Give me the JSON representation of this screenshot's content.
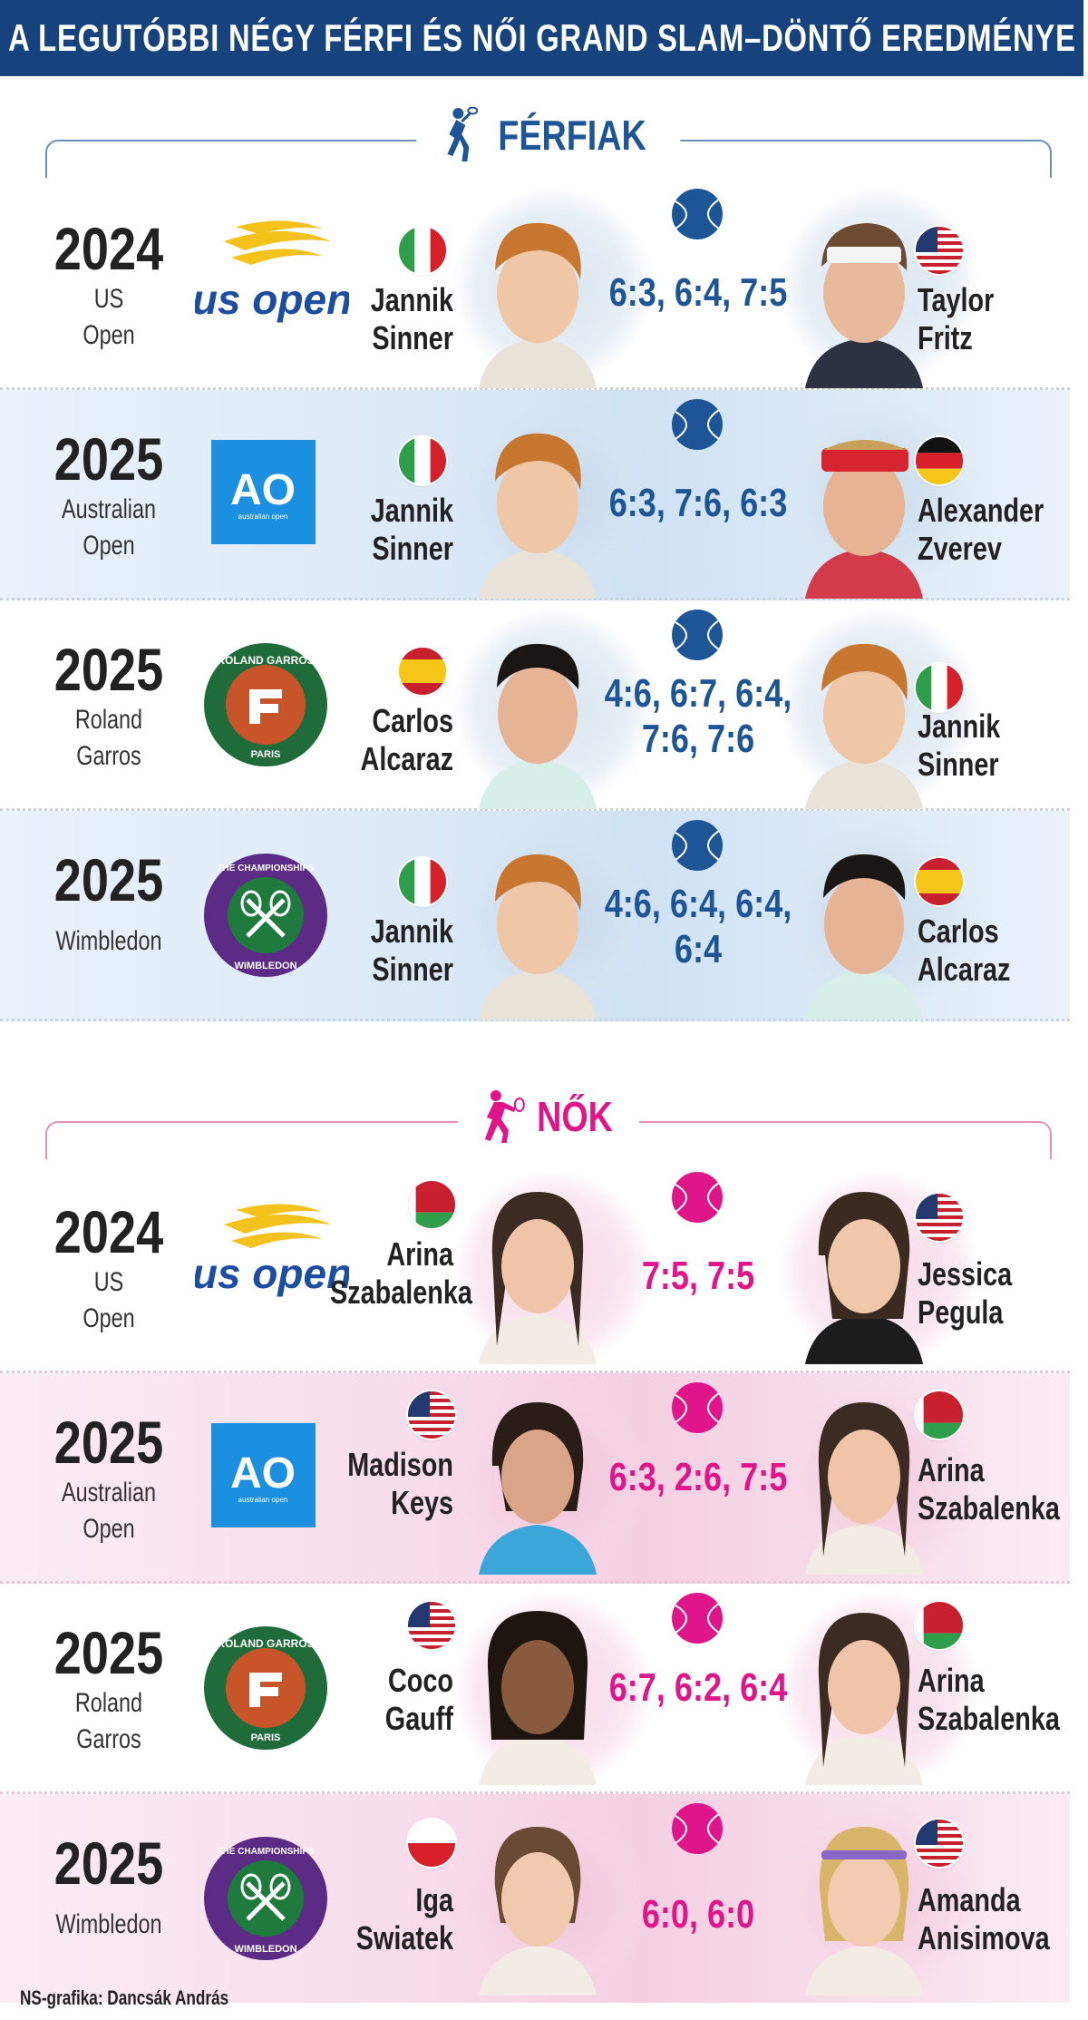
{
  "title": "A LEGUTÓBBI NÉGY FÉRFI ÉS NŐI GRAND SLAM–DÖNTŐ EREDMÉNYE",
  "colors": {
    "navy": "#16437e",
    "blue_accent": "#1d5597",
    "pink": "#e0158a"
  },
  "men": {
    "heading": "FÉRFIAK",
    "matches": [
      {
        "year": "2024",
        "tournament": [
          "US",
          "Open"
        ],
        "logo": "us-open",
        "left": {
          "first": "Jannik",
          "last": "Sinner",
          "flag": "italy"
        },
        "right": {
          "first": "Taylor",
          "last": "Fritz",
          "flag": "usa"
        },
        "score": [
          "6:3, 6:4, 7:5"
        ]
      },
      {
        "year": "2025",
        "tournament": [
          "Australian",
          "Open"
        ],
        "logo": "australian-open",
        "left": {
          "first": "Jannik",
          "last": "Sinner",
          "flag": "italy"
        },
        "right": {
          "first": "Alexander",
          "last": "Zverev",
          "flag": "germany"
        },
        "score": [
          "6:3, 7:6, 6:3"
        ]
      },
      {
        "year": "2025",
        "tournament": [
          "Roland",
          "Garros"
        ],
        "logo": "roland-garros",
        "left": {
          "first": "Carlos",
          "last": "Alcaraz",
          "flag": "spain"
        },
        "right": {
          "first": "Jannik",
          "last": "Sinner",
          "flag": "italy"
        },
        "score": [
          "4:6, 6:7, 6:4,",
          "7:6, 7:6"
        ]
      },
      {
        "year": "2025",
        "tournament": [
          "Wimbledon"
        ],
        "logo": "wimbledon",
        "left": {
          "first": "Jannik",
          "last": "Sinner",
          "flag": "italy"
        },
        "right": {
          "first": "Carlos",
          "last": "Alcaraz",
          "flag": "spain"
        },
        "score": [
          "4:6, 6:4, 6:4,",
          "6:4"
        ]
      }
    ]
  },
  "women": {
    "heading": "NŐK",
    "matches": [
      {
        "year": "2024",
        "tournament": [
          "US",
          "Open"
        ],
        "logo": "us-open",
        "left": {
          "first": "Arina",
          "last": "Szabalenka",
          "flag": "belarus"
        },
        "right": {
          "first": "Jessica",
          "last": "Pegula",
          "flag": "usa"
        },
        "score": [
          "7:5, 7:5"
        ]
      },
      {
        "year": "2025",
        "tournament": [
          "Australian",
          "Open"
        ],
        "logo": "australian-open",
        "left": {
          "first": "Madison",
          "last": "Keys",
          "flag": "usa"
        },
        "right": {
          "first": "Arina",
          "last": "Szabalenka",
          "flag": "belarus"
        },
        "score": [
          "6:3, 2:6, 7:5"
        ]
      },
      {
        "year": "2025",
        "tournament": [
          "Roland",
          "Garros"
        ],
        "logo": "roland-garros",
        "left": {
          "first": "Coco",
          "last": "Gauff",
          "flag": "usa"
        },
        "right": {
          "first": "Arina",
          "last": "Szabalenka",
          "flag": "belarus"
        },
        "score": [
          "6:7, 6:2, 6:4"
        ]
      },
      {
        "year": "2025",
        "tournament": [
          "Wimbledon"
        ],
        "logo": "wimbledon",
        "left": {
          "first": "Iga",
          "last": "Swiatek",
          "flag": "poland"
        },
        "right": {
          "first": "Amanda",
          "last": "Anisimova",
          "flag": "usa"
        },
        "score": [
          "6:0, 6:0"
        ]
      }
    ]
  },
  "logos": {
    "us_open_text": "us open",
    "ao_text": "AO",
    "ao_sub": "australian open",
    "rg_top": "ROLAND GARROS",
    "rg_bottom": "PARIS",
    "wimbledon_top": "THE CHAMPIONSHIPS",
    "wimbledon_bottom": "WIMBLEDON"
  },
  "credit": "NS-grafika: Dancsák András"
}
